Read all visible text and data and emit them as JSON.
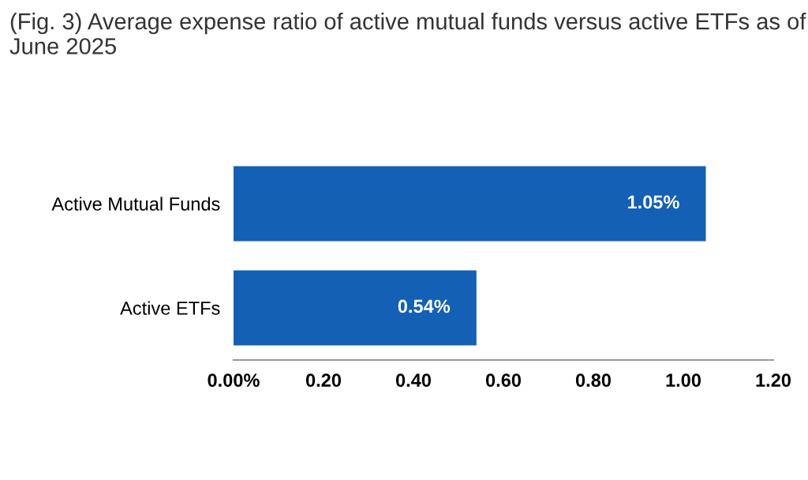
{
  "chart_data": {
    "type": "bar",
    "orientation": "horizontal",
    "title": "(Fig. 3) Average expense ratio of active mutual funds versus active ETFs as of June 2025",
    "categories": [
      "Active Mutual Funds",
      "Active ETFs"
    ],
    "values": [
      1.05,
      0.54
    ],
    "color": "#1360b4",
    "value_labels": [
      "1.05%",
      "0.54%"
    ],
    "xlim": [
      0,
      1.2
    ],
    "xticks": [
      {
        "value": 0,
        "label": "0.00%"
      },
      {
        "value": 0.2,
        "label": "0.20"
      },
      {
        "value": 0.4,
        "label": "0.40"
      },
      {
        "value": 0.6,
        "label": "0.60"
      },
      {
        "value": 0.8,
        "label": "0.80"
      },
      {
        "value": 1.0,
        "label": "1.00"
      },
      {
        "value": 1.2,
        "label": "1.20"
      }
    ],
    "grid": false,
    "legend": false
  }
}
